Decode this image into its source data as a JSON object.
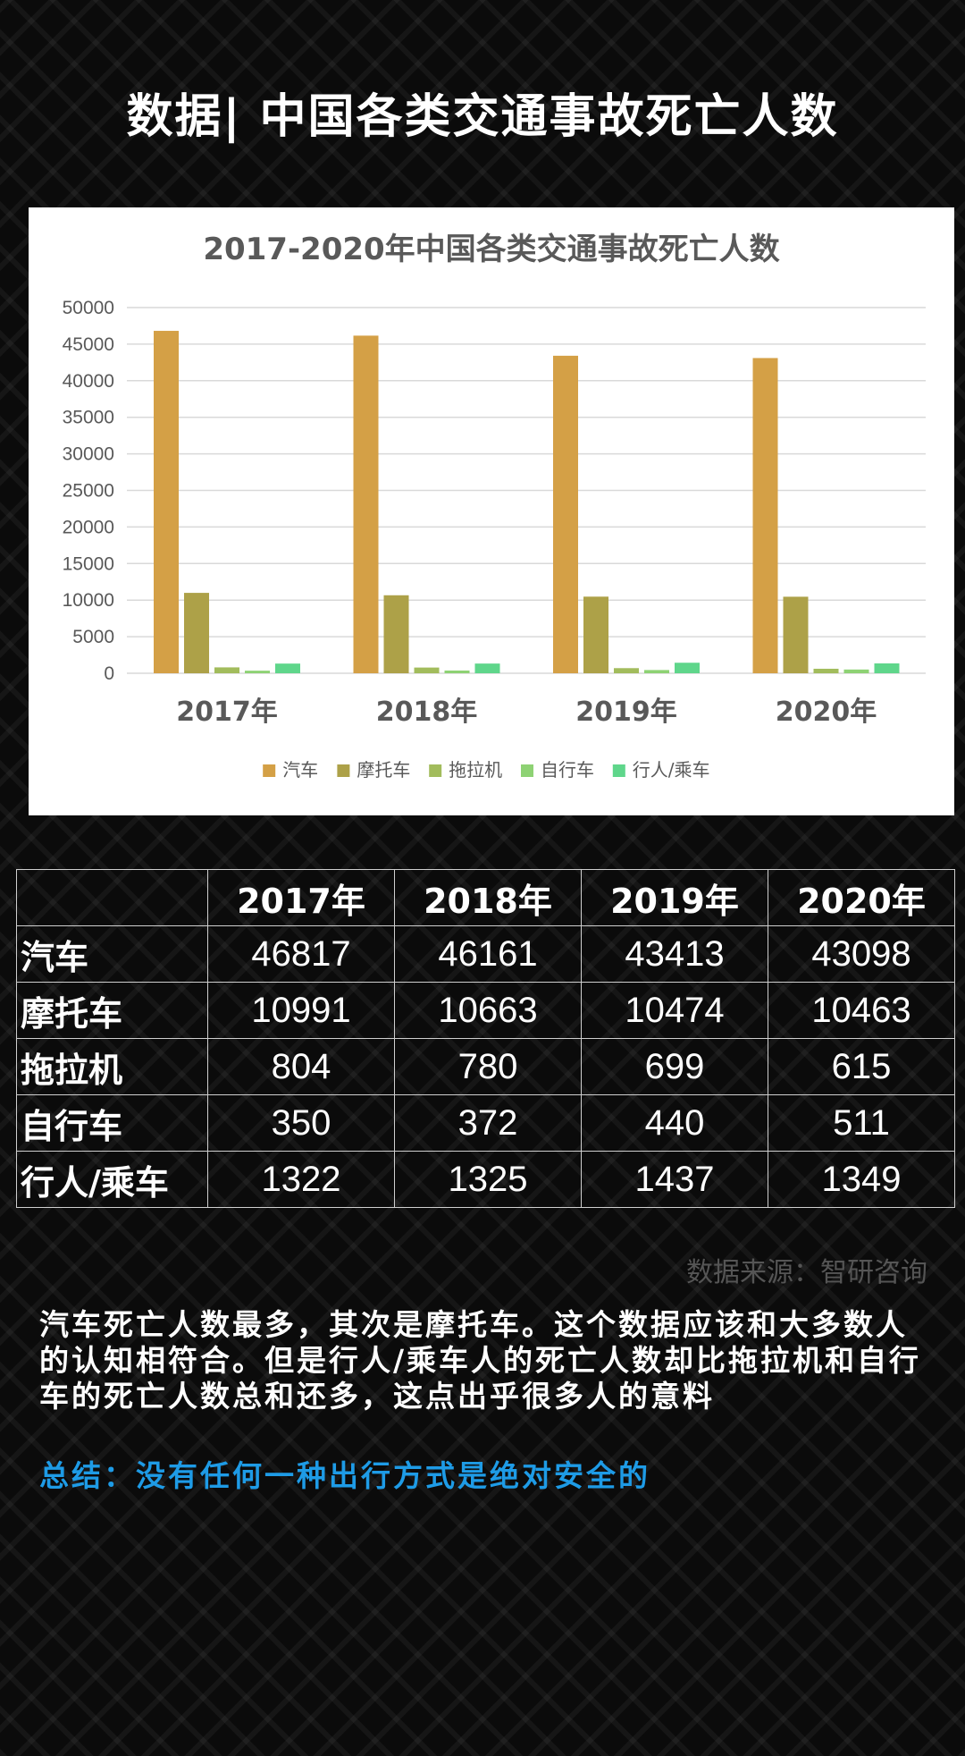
{
  "page_title": "数据| 中国各类交通事故死亡人数",
  "chart_data": {
    "type": "bar",
    "title": "2017-2020年中国各类交通事故死亡人数",
    "categories": [
      "2017年",
      "2018年",
      "2019年",
      "2020年"
    ],
    "series": [
      {
        "name": "汽车",
        "color": "#D4A046",
        "values": [
          46817,
          46161,
          43413,
          43098
        ]
      },
      {
        "name": "摩托车",
        "color": "#ADA148",
        "values": [
          10991,
          10663,
          10474,
          10463
        ]
      },
      {
        "name": "拖拉机",
        "color": "#A2BC5C",
        "values": [
          804,
          780,
          699,
          615
        ]
      },
      {
        "name": "自行车",
        "color": "#8ED274",
        "values": [
          350,
          372,
          440,
          511
        ]
      },
      {
        "name": "行人/乘车",
        "color": "#5FD68B",
        "values": [
          1322,
          1325,
          1437,
          1349
        ]
      }
    ],
    "yticks": [
      "50000",
      "45000",
      "40000",
      "35000",
      "30000",
      "25000",
      "20000",
      "15000",
      "10000",
      "5000",
      "0"
    ],
    "ylim": [
      0,
      50000
    ],
    "grid": true,
    "legend_position": "bottom"
  },
  "table": {
    "headers": [
      "",
      "2017年",
      "2018年",
      "2019年",
      "2020年"
    ],
    "rows": [
      {
        "label": "汽车",
        "values": [
          "46817",
          "46161",
          "43413",
          "43098"
        ]
      },
      {
        "label": "摩托车",
        "values": [
          "10991",
          "10663",
          "10474",
          "10463"
        ]
      },
      {
        "label": "拖拉机",
        "values": [
          "804",
          "780",
          "699",
          "615"
        ]
      },
      {
        "label": "自行车",
        "values": [
          "350",
          "372",
          "440",
          "511"
        ]
      },
      {
        "label": "行人/乘车",
        "values": [
          "1322",
          "1325",
          "1437",
          "1349"
        ]
      }
    ]
  },
  "source": "数据来源：智研咨询",
  "paragraph": "汽车死亡人数最多，其次是摩托车。这个数据应该和大多数人的认知相符合。但是行人/乘车人的死亡人数却比拖拉机和自行车的死亡人数总和还多，这点出乎很多人的意料",
  "summary": "总结：没有任何一种出行方式是绝对安全的"
}
